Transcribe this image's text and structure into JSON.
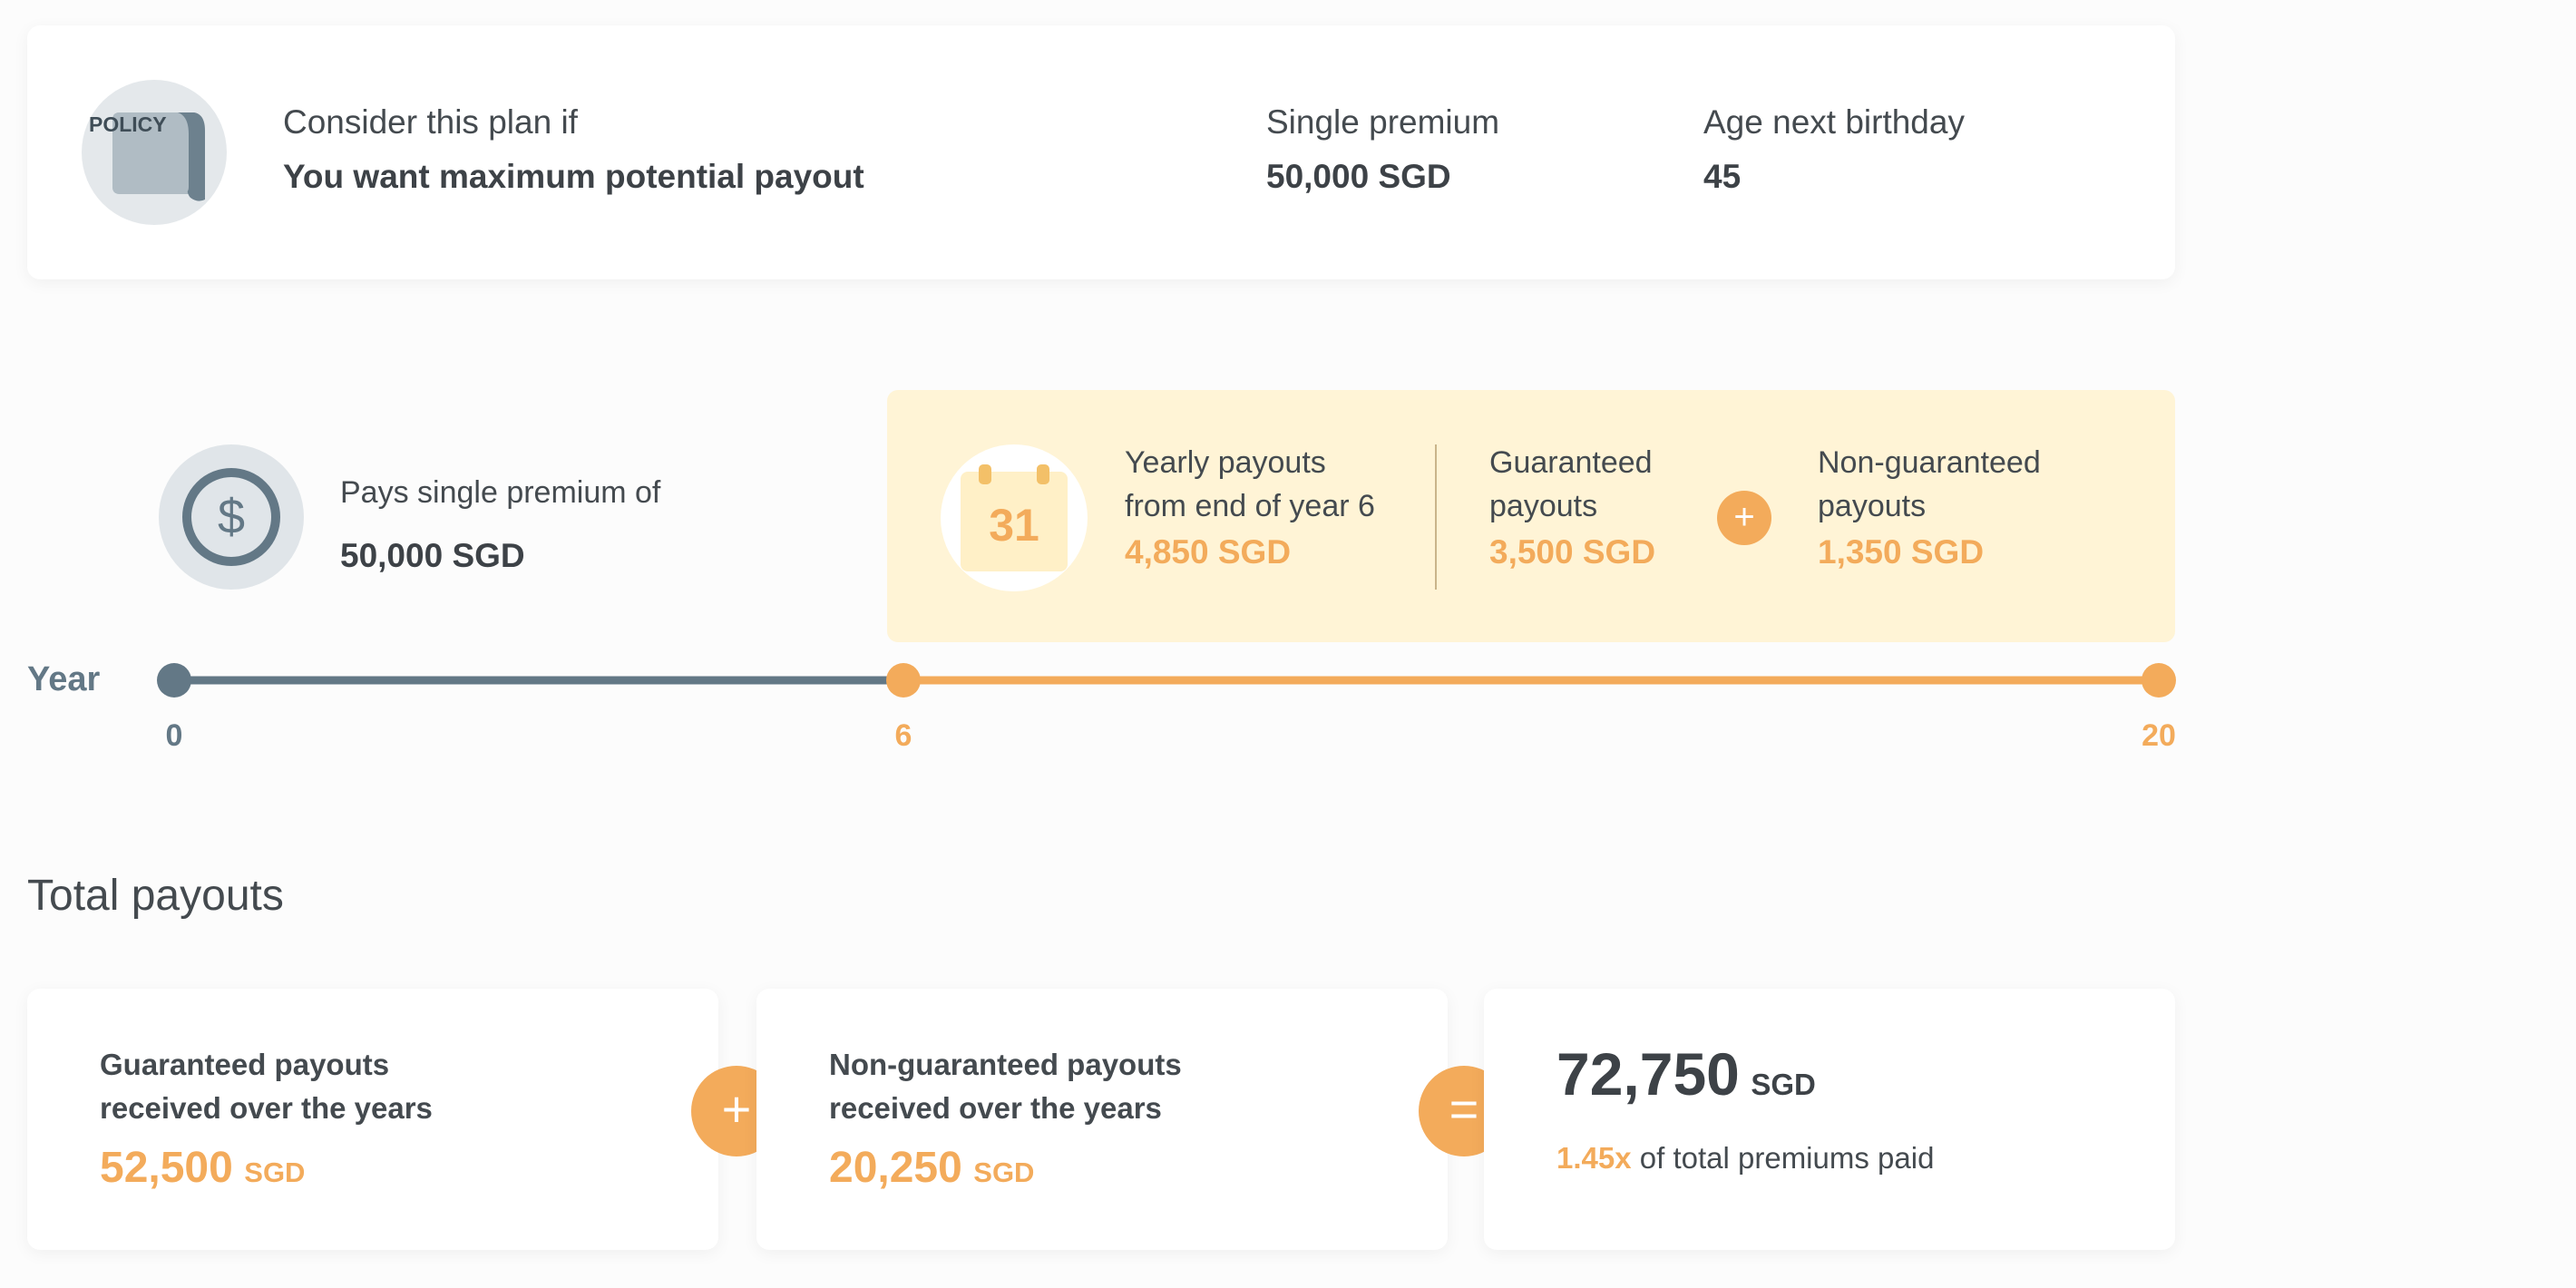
{
  "policy": {
    "icon_label": "POLICY",
    "consider_label": "Consider this plan if",
    "consider_value": "You want maximum potential payout",
    "single_premium_label": "Single premium",
    "single_premium_value": "50,000 SGD",
    "age_label": "Age next birthday",
    "age_value": "45"
  },
  "premium": {
    "label": "Pays single premium of",
    "value": "50,000 SGD",
    "icon": "dollar-coin-icon"
  },
  "yearly": {
    "calendar_day": "31",
    "label_line1": "Yearly payouts",
    "label_line2": "from end of year 6",
    "value": "4,850 SGD",
    "guaranteed_line1": "Guaranteed",
    "guaranteed_line2": "payouts",
    "guaranteed_value": "3,500 SGD",
    "plus": "+",
    "nonguaranteed_line1": "Non-guaranteed",
    "nonguaranteed_line2": "payouts",
    "nonguaranteed_value": "1,350 SGD"
  },
  "timeline": {
    "label": "Year",
    "start": "0",
    "mid": "6",
    "end": "20"
  },
  "totals": {
    "heading": "Total payouts",
    "guaranteed_line1": "Guaranteed payouts",
    "guaranteed_line2": "received over the years",
    "guaranteed_value": "52,500",
    "guaranteed_unit": "SGD",
    "plus": "+",
    "nonguaranteed_line1": "Non-guaranteed payouts",
    "nonguaranteed_line2": "received over the years",
    "nonguaranteed_value": "20,250",
    "nonguaranteed_unit": "SGD",
    "equals": "=",
    "total_value": "72,750",
    "total_unit": "SGD",
    "multiplier": "1.45x",
    "multiplier_text": "of total premiums paid"
  },
  "colors": {
    "accent": "#f3ab5b",
    "slate": "#637886",
    "highlight_bg": "#fff4d6"
  }
}
